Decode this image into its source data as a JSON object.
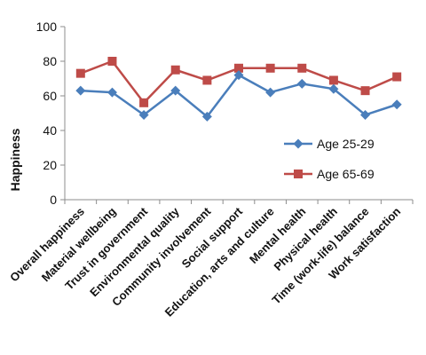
{
  "chart_data": {
    "type": "line",
    "categories": [
      "Overall happiness",
      "Material wellbeing",
      "Trust in government",
      "Environmental quality",
      "Community involvement",
      "Social support",
      "Education, arts and culture",
      "Mental health",
      "Physical health",
      "Time (work-life) balance",
      "Work satisfaction"
    ],
    "series": [
      {
        "name": "Age 25-29",
        "color": "#4a7ebb",
        "marker": "diamond",
        "values": [
          63,
          62,
          49,
          63,
          48,
          72,
          62,
          67,
          64,
          49,
          55
        ]
      },
      {
        "name": "Age 65-69",
        "color": "#be4b48",
        "marker": "square",
        "values": [
          73,
          80,
          56,
          75,
          69,
          76,
          76,
          76,
          69,
          63,
          71
        ]
      }
    ],
    "title": "",
    "xlabel": "",
    "ylabel": "Happiness",
    "ylim": [
      0,
      100
    ],
    "yticks": [
      0,
      20,
      40,
      60,
      80,
      100
    ],
    "grid": false,
    "legend_position": "center-right"
  }
}
